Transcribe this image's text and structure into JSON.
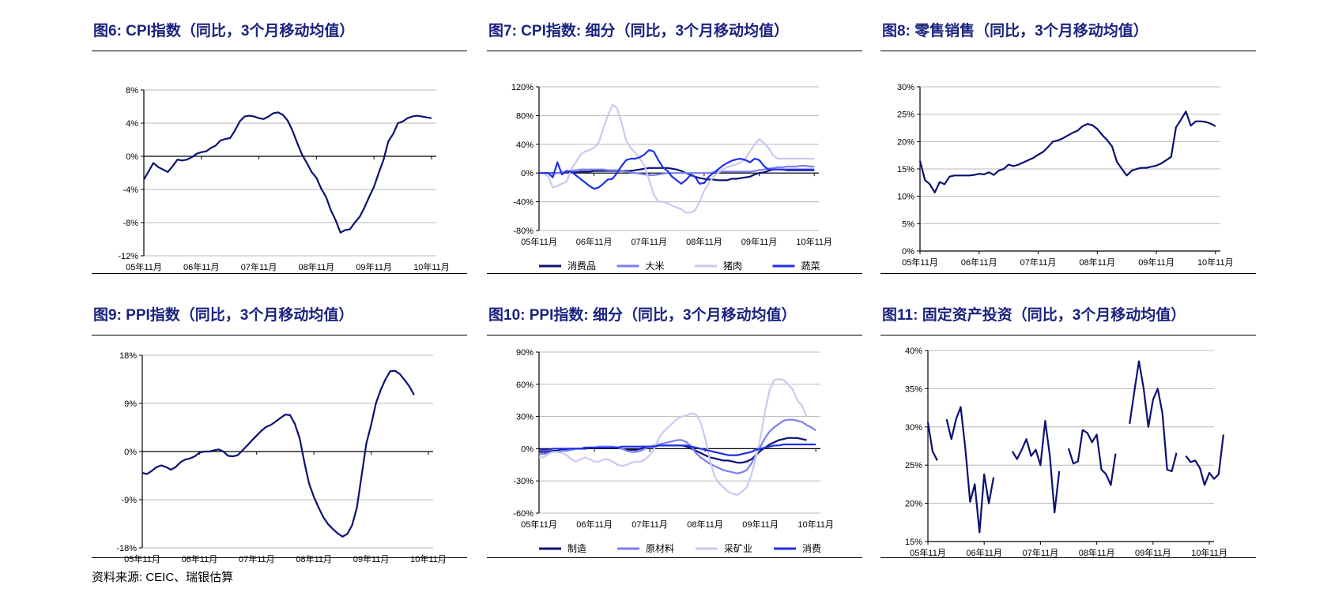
{
  "page": {
    "source": "资料来源: CEIC、瑞银估算"
  },
  "chart_data": [
    {
      "id": "fig6",
      "type": "line",
      "title": "图6: CPI指数（同比，3个月移动均值）",
      "ylim": [
        -12,
        8
      ],
      "yticks": [
        8,
        4,
        0,
        -4,
        -8,
        -12
      ],
      "ytick_labels": [
        "8%",
        "4%",
        "0%",
        "-4%",
        "-8%",
        "-12%"
      ],
      "xlim": [
        0,
        61
      ],
      "xticks": [
        0,
        12,
        24,
        36,
        48,
        60
      ],
      "xtick_labels": [
        "05年11月",
        "06年11月",
        "07年11月",
        "08年11月",
        "09年11月",
        "10年11月"
      ],
      "grid": true,
      "legend": "none",
      "series": [
        {
          "color": "#0a1172",
          "y": [
            -2.8,
            -1.8,
            -0.8,
            -1.3,
            -1.6,
            -1.9,
            -1.2,
            -0.4,
            -0.5,
            -0.4,
            -0.1,
            0.3,
            0.5,
            0.6,
            1.0,
            1.3,
            1.9,
            2.1,
            2.2,
            3.1,
            4.2,
            4.8,
            4.9,
            4.8,
            4.6,
            4.5,
            4.8,
            5.2,
            5.3,
            5.0,
            4.3,
            3.1,
            1.6,
            0.2,
            -0.8,
            -1.9,
            -2.6,
            -3.9,
            -4.9,
            -6.5,
            -7.7,
            -9.2,
            -8.9,
            -8.8,
            -8.0,
            -7.3,
            -6.2,
            -4.9,
            -3.7,
            -2.0,
            -0.4,
            1.8,
            2.7,
            4.0,
            4.2,
            4.6,
            4.8,
            4.9,
            4.8,
            4.7,
            4.6
          ]
        }
      ]
    },
    {
      "id": "fig7",
      "type": "line",
      "title": "图7: CPI指数: 细分（同比，3个月移动均值）",
      "ylim": [
        -80,
        120
      ],
      "yticks": [
        120,
        80,
        40,
        0,
        -40,
        -80
      ],
      "ytick_labels": [
        "120%",
        "80%",
        "40%",
        "0%",
        "-40%",
        "-80%"
      ],
      "xlim": [
        0,
        61
      ],
      "xticks": [
        0,
        12,
        24,
        36,
        48,
        60
      ],
      "xtick_labels": [
        "05年11月",
        "06年11月",
        "07年11月",
        "08年11月",
        "09年11月",
        "10年11月"
      ],
      "grid": true,
      "legend": "bottom",
      "series": [
        {
          "name": "消费品",
          "color": "#0a1172",
          "y": [
            0,
            0,
            0,
            0,
            0,
            1,
            1,
            1,
            1,
            2,
            2,
            2,
            3,
            3,
            3,
            3,
            3,
            3,
            3,
            3,
            3,
            4,
            5,
            6,
            7,
            7,
            7,
            7,
            7,
            6,
            5,
            3,
            0,
            -2,
            -5,
            -7,
            -8,
            -9,
            -9,
            -10,
            -10,
            -10,
            -8,
            -8,
            -7,
            -6,
            -5,
            -2,
            0,
            1,
            3,
            5,
            5,
            5,
            4,
            4,
            4,
            4,
            4,
            4,
            4
          ]
        },
        {
          "name": "大米",
          "color": "#7a7ff0",
          "y": [
            0,
            0,
            0,
            -1,
            0,
            1,
            2,
            3,
            4,
            5,
            5,
            5,
            5,
            5,
            5,
            4,
            4,
            4,
            3,
            2,
            1,
            0,
            -1,
            -2,
            -3,
            -3,
            -2,
            -1,
            0,
            0,
            0,
            0,
            0,
            0,
            0,
            0,
            0,
            0,
            1,
            2,
            2,
            2,
            2,
            2,
            2,
            2,
            2,
            3,
            4,
            5,
            6,
            7,
            8,
            8,
            9,
            9,
            9,
            10,
            10,
            9,
            9
          ]
        },
        {
          "name": "猪肉",
          "color": "#c8caf0",
          "y": [
            0,
            0,
            -5,
            -20,
            -18,
            -15,
            -12,
            5,
            15,
            25,
            30,
            32,
            35,
            42,
            62,
            80,
            95,
            90,
            70,
            45,
            35,
            28,
            20,
            10,
            -10,
            -30,
            -40,
            -40,
            -42,
            -45,
            -48,
            -50,
            -55,
            -55,
            -52,
            -40,
            -25,
            -15,
            -5,
            0,
            5,
            8,
            10,
            12,
            15,
            20,
            30,
            40,
            47,
            42,
            35,
            25,
            20,
            20,
            20,
            20,
            20,
            20,
            20,
            20,
            20
          ]
        },
        {
          "name": "蔬菜",
          "color": "#1f2fe8",
          "y": [
            0,
            0,
            0,
            -6,
            15,
            -2,
            3,
            2,
            -3,
            -8,
            -13,
            -18,
            -22,
            -20,
            -15,
            -9,
            -8,
            0,
            10,
            18,
            20,
            20,
            22,
            26,
            32,
            30,
            18,
            8,
            3,
            -5,
            -10,
            -15,
            -10,
            -3,
            -5,
            -15,
            -14,
            -5,
            0,
            5,
            10,
            14,
            17,
            19,
            20,
            18,
            15,
            20,
            18,
            10,
            5,
            5,
            5,
            5,
            5,
            5,
            5,
            5,
            5,
            5,
            5
          ]
        }
      ]
    },
    {
      "id": "fig8",
      "type": "line",
      "title": "图8: 零售销售（同比，3个月移动均值）",
      "ylim": [
        0,
        30
      ],
      "yticks": [
        30,
        25,
        20,
        15,
        10,
        5,
        0
      ],
      "ytick_labels": [
        "30%",
        "25%",
        "20%",
        "15%",
        "10%",
        "5%",
        "0%"
      ],
      "xlim": [
        0,
        61
      ],
      "xticks": [
        0,
        12,
        24,
        36,
        48,
        60
      ],
      "xtick_labels": [
        "05年11月",
        "06年11月",
        "07年11月",
        "08年11月",
        "09年11月",
        "10年11月"
      ],
      "grid": true,
      "legend": "none",
      "series": [
        {
          "color": "#0a1172",
          "y": [
            16.5,
            13.0,
            12.2,
            10.7,
            12.6,
            12.2,
            13.6,
            13.8,
            13.8,
            13.8,
            13.8,
            13.9,
            14.1,
            14.0,
            14.4,
            13.9,
            14.7,
            15.0,
            15.8,
            15.5,
            15.8,
            16.2,
            16.6,
            17.0,
            17.6,
            18.1,
            19.0,
            20.0,
            20.2,
            20.6,
            21.1,
            21.6,
            22.0,
            22.8,
            23.2,
            23.0,
            22.3,
            21.2,
            20.3,
            19.1,
            16.3,
            15.0,
            13.8,
            14.7,
            15.0,
            15.2,
            15.2,
            15.4,
            15.6,
            16.0,
            16.6,
            17.2,
            22.6,
            24.0,
            25.5,
            22.9,
            23.7,
            23.7,
            23.6,
            23.3,
            22.8
          ]
        }
      ]
    },
    {
      "id": "fig9",
      "type": "line",
      "title": "图9: PPI指数（同比，3个月移动均值）",
      "ylim": [
        -18,
        18
      ],
      "yticks": [
        18,
        9,
        0,
        -9,
        -18
      ],
      "ytick_labels": [
        "18%",
        "9%",
        "0%",
        "-9%",
        "-18%"
      ],
      "xlim": [
        0,
        61
      ],
      "xticks": [
        0,
        12,
        24,
        36,
        48,
        60
      ],
      "xtick_labels": [
        "05年11月",
        "06年11月",
        "07年11月",
        "08年11月",
        "09年11月",
        "10年11月"
      ],
      "grid": true,
      "legend": "none",
      "series": [
        {
          "color": "#0a1172",
          "y": [
            -4.0,
            -4.2,
            -3.6,
            -2.9,
            -2.6,
            -2.9,
            -3.4,
            -2.9,
            -2.0,
            -1.5,
            -1.3,
            -0.9,
            -0.2,
            0.0,
            0.0,
            0.2,
            0.4,
            0.0,
            -0.8,
            -0.9,
            -0.7,
            0.2,
            1.1,
            2.1,
            3.0,
            3.9,
            4.6,
            5.0,
            5.6,
            6.3,
            6.9,
            6.8,
            5.2,
            2.5,
            -2.0,
            -6.0,
            -8.5,
            -10.5,
            -12.3,
            -13.6,
            -14.5,
            -15.3,
            -15.9,
            -15.4,
            -13.8,
            -10.5,
            -4.5,
            1.5,
            5.0,
            9.0,
            11.5,
            13.5,
            15.0,
            15.1,
            14.5,
            13.4,
            12.2,
            10.6
          ]
        }
      ]
    },
    {
      "id": "fig10",
      "type": "line",
      "title": "图10: PPI指数: 细分（同比，3个月移动均值）",
      "ylim": [
        -60,
        90
      ],
      "yticks": [
        90,
        60,
        30,
        0,
        -30,
        -60
      ],
      "ytick_labels": [
        "90%",
        "60%",
        "30%",
        "0%",
        "-30%",
        "-60%"
      ],
      "xlim": [
        0,
        61
      ],
      "xticks": [
        0,
        12,
        24,
        36,
        48,
        60
      ],
      "xtick_labels": [
        "05年11月",
        "06年11月",
        "07年11月",
        "08年11月",
        "09年11月",
        "10年11月"
      ],
      "grid": true,
      "legend": "bottom",
      "series": [
        {
          "name": "制造",
          "color": "#0a1172",
          "y": [
            -3,
            -3,
            -3,
            -2,
            -2,
            -1,
            -1,
            0,
            0,
            0,
            0,
            1,
            1,
            1,
            1,
            1,
            1,
            1,
            0,
            -1,
            -1,
            -1,
            0,
            1,
            2,
            2,
            3,
            3,
            3,
            3,
            3,
            3,
            2,
            0,
            -2,
            -4,
            -6,
            -8,
            -9,
            -10,
            -11,
            -11,
            -12,
            -13,
            -13,
            -12,
            -10,
            -6,
            -2,
            1,
            4,
            6,
            8,
            9,
            10,
            10,
            10,
            9,
            8
          ]
        },
        {
          "name": "原材料",
          "color": "#7a7ff0",
          "y": [
            -5,
            -5,
            -4,
            -3,
            -3,
            -2,
            -2,
            -1,
            0,
            0,
            1,
            1,
            1,
            2,
            2,
            2,
            2,
            1,
            0,
            -2,
            -3,
            -3,
            -2,
            0,
            2,
            3,
            4,
            5,
            6,
            7,
            8,
            8,
            6,
            2,
            -4,
            -8,
            -11,
            -14,
            -16,
            -18,
            -20,
            -21,
            -22,
            -23,
            -22,
            -20,
            -14,
            -6,
            2,
            10,
            16,
            20,
            23,
            26,
            27,
            27,
            26,
            25,
            22,
            20,
            17
          ]
        },
        {
          "name": "采矿业",
          "color": "#c8caf0",
          "y": [
            -8,
            -8,
            -5,
            -3,
            -3,
            -4,
            -6,
            -10,
            -12,
            -10,
            -8,
            -10,
            -12,
            -12,
            -10,
            -10,
            -12,
            -15,
            -16,
            -15,
            -13,
            -12,
            -12,
            -10,
            -6,
            0,
            10,
            16,
            20,
            24,
            28,
            30,
            31,
            33,
            32,
            25,
            10,
            -10,
            -25,
            -32,
            -36,
            -40,
            -42,
            -43,
            -40,
            -36,
            -25,
            -8,
            10,
            35,
            55,
            64,
            65,
            64,
            60,
            55,
            45,
            40,
            30
          ]
        },
        {
          "name": "消费",
          "color": "#1f2fe8",
          "y": [
            -1,
            -1,
            -1,
            0,
            0,
            0,
            0,
            0,
            0,
            0,
            1,
            1,
            1,
            1,
            1,
            1,
            1,
            1,
            2,
            2,
            2,
            2,
            2,
            2,
            2,
            2,
            3,
            3,
            3,
            3,
            3,
            3,
            3,
            2,
            1,
            0,
            -1,
            -2,
            -3,
            -4,
            -5,
            -6,
            -6,
            -6,
            -5,
            -4,
            -3,
            -1,
            0,
            1,
            2,
            3,
            3,
            4,
            4,
            4,
            4,
            4,
            4,
            4,
            4
          ]
        }
      ]
    },
    {
      "id": "fig11",
      "type": "line",
      "title": "图11: 固定资产投资（同比，3个月移动均值）",
      "ylim": [
        15,
        40
      ],
      "yticks": [
        40,
        35,
        30,
        25,
        20,
        15
      ],
      "ytick_labels": [
        "40%",
        "35%",
        "30%",
        "25%",
        "20%",
        "15%"
      ],
      "xlim": [
        0,
        61
      ],
      "xticks": [
        0,
        12,
        24,
        36,
        48,
        60
      ],
      "xtick_labels": [
        "05年11月",
        "06年11月",
        "07年11月",
        "08年11月",
        "09年11月",
        "10年11月"
      ],
      "grid": true,
      "legend": "none",
      "series": [
        {
          "color": "#0a1172",
          "segments": [
            {
              "x0": 0,
              "y": [
                30.6,
                26.8,
                25.6
              ]
            },
            {
              "x0": 4,
              "y": [
                31.0,
                28.4,
                31.0,
                32.6,
                27.0,
                20.2,
                22.5,
                16.2,
                23.8,
                20.0,
                23.4
              ]
            },
            {
              "x0": 18,
              "y": [
                26.8,
                25.8,
                27.0,
                28.4,
                26.2,
                27.0,
                25.0,
                30.8,
                26.2,
                18.8,
                24.2
              ]
            },
            {
              "x0": 30,
              "y": [
                27.2,
                25.2,
                25.5,
                29.6,
                29.2,
                28.0,
                29.0,
                24.4,
                23.8,
                22.4,
                26.5
              ]
            },
            {
              "x0": 43,
              "y": [
                30.4,
                34.6,
                38.6,
                35.0,
                30.0,
                33.6,
                35.0,
                31.8,
                24.4,
                24.2,
                26.6
              ]
            },
            {
              "x0": 55,
              "y": [
                26.2,
                25.4,
                25.6,
                24.6,
                22.4,
                24.0,
                23.2,
                23.8,
                29.0
              ]
            }
          ]
        }
      ]
    }
  ]
}
